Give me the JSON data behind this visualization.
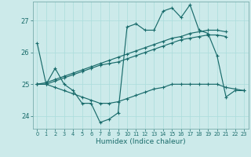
{
  "title": "",
  "xlabel": "Humidex (Indice chaleur)",
  "bg_color": "#cceaea",
  "grid_color": "#aadddd",
  "line_color": "#1a6b6b",
  "xlim": [
    -0.5,
    23.5
  ],
  "ylim": [
    23.6,
    27.6
  ],
  "yticks": [
    24,
    25,
    26,
    27
  ],
  "xtick_labels": [
    "0",
    "1",
    "2",
    "3",
    "4",
    "5",
    "6",
    "7",
    "8",
    "9",
    "10",
    "11",
    "12",
    "13",
    "14",
    "15",
    "16",
    "17",
    "18",
    "19",
    "20",
    "21",
    "22",
    "23"
  ],
  "series": [
    {
      "x": [
        0,
        1,
        2,
        3,
        4,
        5,
        6,
        7,
        8,
        9,
        10,
        11,
        12,
        13,
        14,
        15,
        16,
        17,
        18,
        19,
        20,
        21,
        22,
        23
      ],
      "y": [
        26.3,
        25.0,
        25.5,
        25.0,
        24.8,
        24.4,
        24.4,
        23.8,
        23.9,
        24.1,
        26.8,
        26.9,
        26.7,
        26.7,
        27.3,
        27.4,
        27.1,
        27.5,
        26.7,
        26.6,
        25.9,
        24.6,
        24.8,
        24.8
      ]
    },
    {
      "x": [
        0,
        1,
        2,
        3,
        4,
        5,
        6,
        7,
        8,
        9,
        10,
        11,
        12,
        13,
        14,
        15,
        16,
        17,
        18,
        19,
        20,
        21
      ],
      "y": [
        25.0,
        25.05,
        25.15,
        25.25,
        25.35,
        25.45,
        25.55,
        25.65,
        25.75,
        25.85,
        25.95,
        26.05,
        26.15,
        26.25,
        26.35,
        26.45,
        26.5,
        26.6,
        26.65,
        26.7,
        26.7,
        26.65
      ]
    },
    {
      "x": [
        0,
        1,
        2,
        3,
        4,
        5,
        6,
        7,
        8,
        9,
        10,
        11,
        12,
        13,
        14,
        15,
        16,
        17,
        18,
        19,
        20,
        21
      ],
      "y": [
        25.0,
        25.0,
        25.1,
        25.2,
        25.3,
        25.4,
        25.5,
        25.6,
        25.65,
        25.7,
        25.8,
        25.9,
        26.0,
        26.1,
        26.2,
        26.3,
        26.4,
        26.45,
        26.5,
        26.55,
        26.55,
        26.5
      ]
    },
    {
      "x": [
        0,
        1,
        2,
        3,
        4,
        5,
        6,
        7,
        8,
        9,
        10,
        11,
        12,
        13,
        14,
        15,
        16,
        17,
        18,
        19,
        20,
        21,
        22,
        23
      ],
      "y": [
        25.0,
        25.0,
        24.9,
        24.8,
        24.7,
        24.6,
        24.5,
        24.4,
        24.4,
        24.45,
        24.55,
        24.65,
        24.75,
        24.85,
        24.9,
        25.0,
        25.0,
        25.0,
        25.0,
        25.0,
        25.0,
        24.9,
        24.85,
        24.8
      ]
    }
  ]
}
